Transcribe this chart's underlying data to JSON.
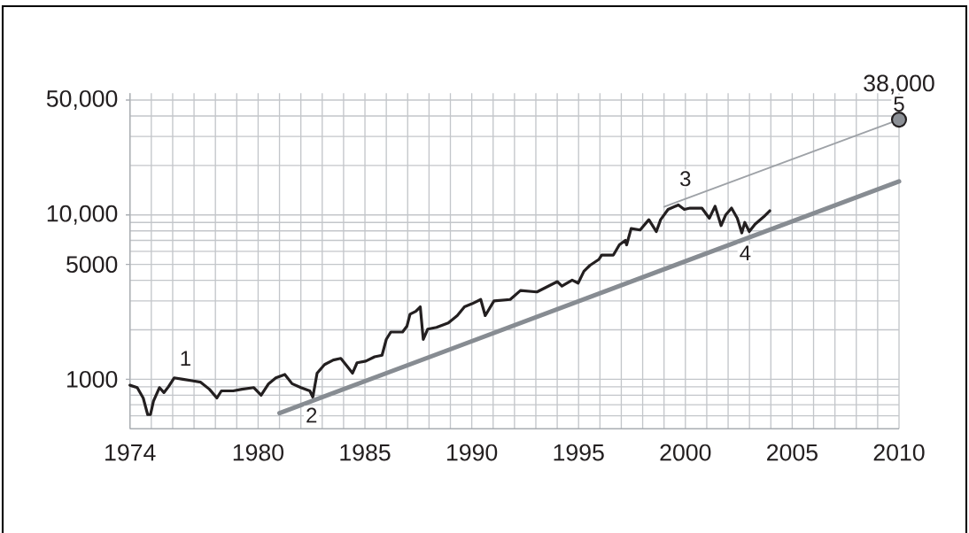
{
  "chart_data": {
    "type": "line",
    "xlim": [
      1974,
      2010
    ],
    "xticks": [
      1974,
      {
        "value": 1975,
        "label": null
      },
      {
        "value": 1976,
        "label": null
      },
      {
        "value": 1977,
        "label": null
      },
      {
        "value": 1978,
        "label": null
      },
      {
        "value": 1979,
        "label": null
      },
      1980,
      {
        "value": 1981,
        "label": null
      },
      {
        "value": 1982,
        "label": null
      },
      {
        "value": 1983,
        "label": null
      },
      {
        "value": 1984,
        "label": null
      },
      1985,
      {
        "value": 1986,
        "label": null
      },
      {
        "value": 1987,
        "label": null
      },
      {
        "value": 1988,
        "label": null
      },
      {
        "value": 1989,
        "label": null
      },
      1990,
      {
        "value": 1991,
        "label": null
      },
      {
        "value": 1992,
        "label": null
      },
      {
        "value": 1993,
        "label": null
      },
      {
        "value": 1994,
        "label": null
      },
      1995,
      {
        "value": 1996,
        "label": null
      },
      {
        "value": 1997,
        "label": null
      },
      {
        "value": 1998,
        "label": null
      },
      {
        "value": 1999,
        "label": null
      },
      2000,
      {
        "value": 2001,
        "label": null
      },
      {
        "value": 2002,
        "label": null
      },
      {
        "value": 2003,
        "label": null
      },
      {
        "value": 2004,
        "label": null
      },
      2005,
      {
        "value": 2006,
        "label": null
      },
      {
        "value": 2007,
        "label": null
      },
      {
        "value": 2008,
        "label": null
      },
      {
        "value": 2009,
        "label": null
      },
      2010
    ],
    "ylim": [
      500,
      55000
    ],
    "yticks": [
      {
        "value": 600,
        "label": null
      },
      {
        "value": 700,
        "label": null
      },
      {
        "value": 800,
        "label": null
      },
      {
        "value": 900,
        "label": null
      },
      1000,
      {
        "value": 2000,
        "label": null
      },
      {
        "value": 3000,
        "label": null
      },
      {
        "value": 4000,
        "label": null
      },
      5000,
      {
        "value": 6000,
        "label": null
      },
      {
        "value": 7000,
        "label": null
      },
      {
        "value": 8000,
        "label": null
      },
      {
        "value": 9000,
        "label": null
      },
      {
        "value": 10000,
        "label": "10,000"
      },
      {
        "value": 20000,
        "label": null
      },
      {
        "value": 30000,
        "label": null
      },
      {
        "value": 40000,
        "label": null
      },
      {
        "value": 50000,
        "label": "50,000"
      }
    ],
    "log": "y",
    "grid": true,
    "series": [
      {
        "color": "#231f20",
        "x": [
          1974.0,
          1974.34,
          1974.62,
          1974.83,
          1974.96,
          1975.1,
          1975.38,
          1975.59,
          1975.8,
          1976.07,
          1976.48,
          1976.9,
          1977.31,
          1977.72,
          1978.07,
          1978.28,
          1978.83,
          1979.24,
          1979.8,
          1980.14,
          1980.49,
          1980.83,
          1981.25,
          1981.59,
          1982.0,
          1982.42,
          1982.56,
          1982.76,
          1983.11,
          1983.52,
          1983.87,
          1984.21,
          1984.42,
          1984.63,
          1985.04,
          1985.45,
          1985.8,
          1986.0,
          1986.21,
          1986.76,
          1986.97,
          1987.11,
          1987.38,
          1987.59,
          1987.73,
          1987.94,
          1988.35,
          1988.9,
          1989.32,
          1989.66,
          1990.01,
          1990.42,
          1990.63,
          1991.04,
          1991.8,
          1992.28,
          1993.05,
          1994.01,
          1994.22,
          1994.7,
          1994.98,
          1995.25,
          1995.53,
          1995.95,
          1996.08,
          1996.63,
          1996.91,
          1997.19,
          1997.25,
          1997.46,
          1997.88,
          1998.29,
          1998.64,
          1998.84,
          1999.19,
          1999.67,
          1999.95,
          2000.22,
          2000.77,
          2001.12,
          2001.39,
          2001.67,
          2001.88,
          2002.16,
          2002.43,
          2002.64,
          2002.78,
          2002.99,
          2003.26,
          2003.67,
          2003.95
        ],
        "values": [
          920,
          890,
          770,
          610,
          610,
          735,
          890,
          830,
          900,
          1020,
          1000,
          980,
          960,
          870,
          770,
          850,
          850,
          870,
          890,
          800,
          940,
          1020,
          1070,
          940,
          890,
          850,
          780,
          1090,
          1230,
          1310,
          1340,
          1180,
          1090,
          1260,
          1290,
          1370,
          1400,
          1750,
          1940,
          1940,
          2110,
          2490,
          2590,
          2760,
          1750,
          2020,
          2070,
          2200,
          2440,
          2760,
          2880,
          3060,
          2440,
          3000,
          3060,
          3470,
          3400,
          3930,
          3690,
          4010,
          3850,
          4540,
          4930,
          5360,
          5700,
          5700,
          6580,
          7000,
          6580,
          8270,
          8100,
          9350,
          7920,
          9350,
          10800,
          11500,
          10800,
          11000,
          11000,
          9550,
          11300,
          8610,
          9960,
          11000,
          9550,
          7780,
          9000,
          7920,
          8780,
          9750,
          10600
        ]
      },
      {
        "color": "#878c92",
        "x": [
          1981.0,
          2010
        ],
        "values": [
          622,
          16000
        ]
      },
      {
        "color": "#9ea2a7",
        "x": [
          1999.0,
          2010
        ],
        "values": [
          11200,
          38000
        ]
      },
      {
        "type": "scatter",
        "color": "#8c9096",
        "marker": "circle",
        "x": [
          2010
        ],
        "values": [
          38000
        ],
        "value_labels": [
          "38,000"
        ]
      }
    ],
    "annotations": [
      {
        "text": "1",
        "x": 1976.6,
        "y": 1340
      },
      {
        "text": "2",
        "x": 1982.5,
        "y": 605
      },
      {
        "text": "3",
        "x": 2000.0,
        "y": 16600
      },
      {
        "text": "4",
        "x": 2002.8,
        "y": 5860
      },
      {
        "text": "5",
        "x": 2010,
        "y": 47200
      }
    ]
  }
}
